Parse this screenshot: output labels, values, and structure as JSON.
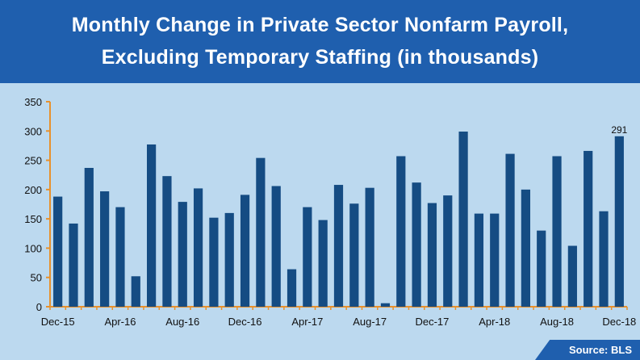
{
  "header": {
    "title_line1": "Monthly Change in Private Sector Nonfarm Payroll,",
    "title_line2": "Excluding Temporary Staffing (in thousands)"
  },
  "footer": {
    "source": "Source: BLS"
  },
  "colors": {
    "banner": "#1f5fae",
    "plot_background": "#bcd9ef",
    "bar": "#154c83",
    "axis": "#e8912c"
  },
  "chart_data": {
    "type": "bar",
    "title": "Monthly Change in Private Sector Nonfarm Payroll, Excluding Temporary Staffing (in thousands)",
    "xlabel": "",
    "ylabel": "",
    "ylim": [
      0,
      350
    ],
    "yticks": [
      0,
      50,
      100,
      150,
      200,
      250,
      300,
      350
    ],
    "grid": false,
    "legend": "none",
    "categories": [
      "Dec-15",
      "Jan-16",
      "Feb-16",
      "Mar-16",
      "Apr-16",
      "May-16",
      "Jun-16",
      "Jul-16",
      "Aug-16",
      "Sep-16",
      "Oct-16",
      "Nov-16",
      "Dec-16",
      "Jan-17",
      "Feb-17",
      "Mar-17",
      "Apr-17",
      "May-17",
      "Jun-17",
      "Jul-17",
      "Aug-17",
      "Sep-17",
      "Oct-17",
      "Nov-17",
      "Dec-17",
      "Jan-18",
      "Feb-18",
      "Mar-18",
      "Apr-18",
      "May-18",
      "Jun-18",
      "Jul-18",
      "Aug-18",
      "Sep-18",
      "Oct-18",
      "Nov-18",
      "Dec-18"
    ],
    "tick_labels": [
      "Dec-15",
      "Apr-16",
      "Aug-16",
      "Dec-16",
      "Apr-17",
      "Aug-17",
      "Dec-17",
      "Apr-18",
      "Aug-18",
      "Dec-18"
    ],
    "values": [
      188,
      142,
      237,
      197,
      170,
      52,
      277,
      223,
      179,
      202,
      152,
      160,
      191,
      254,
      206,
      64,
      170,
      148,
      208,
      176,
      203,
      6,
      257,
      212,
      177,
      190,
      299,
      159,
      159,
      261,
      200,
      130,
      257,
      104,
      266,
      163,
      291
    ],
    "data_labels": [
      {
        "category": "Dec-18",
        "text": "291"
      }
    ]
  }
}
